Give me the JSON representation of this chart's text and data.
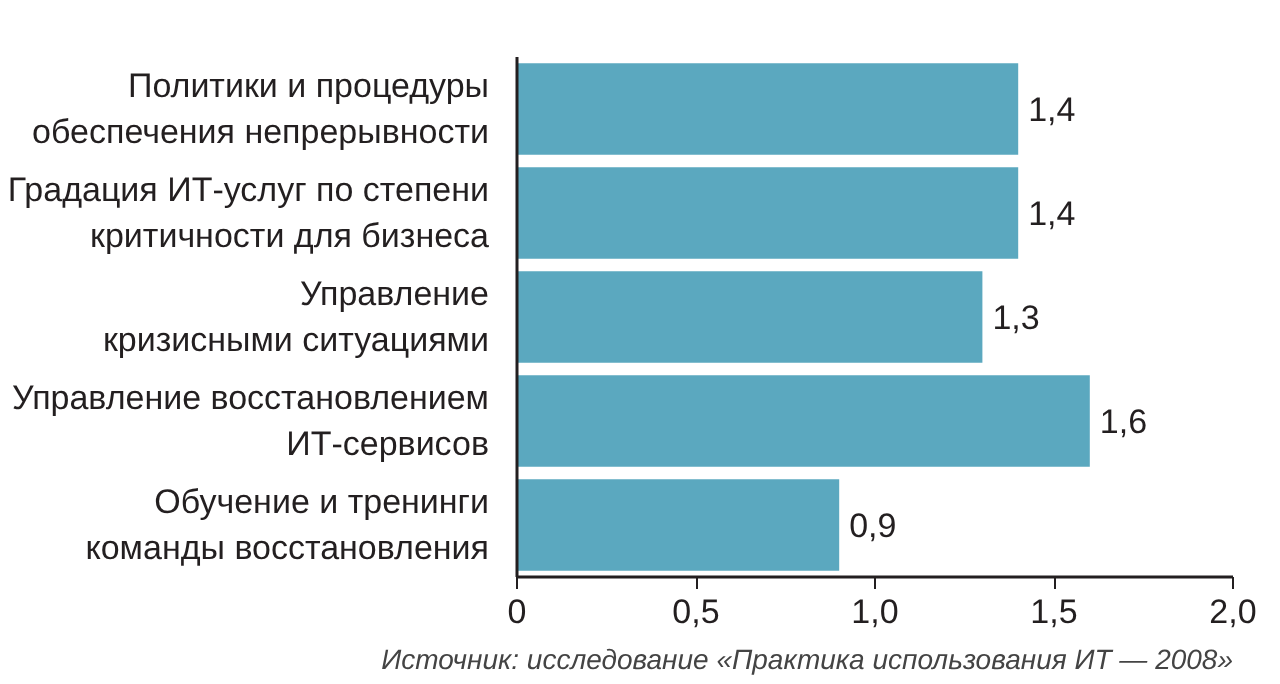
{
  "chart_data": {
    "type": "bar",
    "orientation": "horizontal",
    "categories": [
      "Политики и процедуры обеспечения непрерывности",
      "Градация ИТ-услуг по степени критичности для бизнеса",
      "Управление кризисными ситуациями",
      "Управление восстановлением ИТ-сервисов",
      "Обучение и тренинги команды восстановления"
    ],
    "values": [
      1.4,
      1.4,
      1.3,
      1.6,
      0.9
    ],
    "value_labels": [
      "1,4",
      "1,4",
      "1,3",
      "1,6",
      "0,9"
    ],
    "color": "#5ba8bf",
    "xlim": [
      0,
      2
    ],
    "xticks": [
      0,
      {
        "value": 0.5,
        "label": "0,5"
      },
      {
        "value": 1.0,
        "label": "1,0"
      },
      {
        "value": 1.5,
        "label": "1,5"
      },
      {
        "value": 2.0,
        "label": "2,0"
      }
    ],
    "grid": false,
    "annotations": [
      "Источник: исследование «Практика использования ИТ — 2008»"
    ]
  }
}
